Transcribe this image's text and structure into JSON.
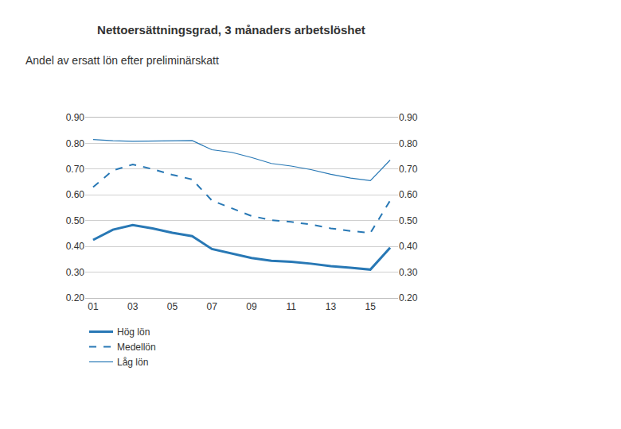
{
  "chart_data": {
    "type": "line",
    "title": "Nettoersättningsgrad, 3 månaders arbetslöshet",
    "subtitle": "Andel av ersatt lön efter preliminärskatt",
    "x": [
      2001,
      2002,
      2003,
      2004,
      2005,
      2006,
      2007,
      2008,
      2009,
      2010,
      2011,
      2012,
      2013,
      2014,
      2015,
      2016
    ],
    "xlim": [
      2000.6,
      2016.4
    ],
    "xticks": [
      {
        "value": 2001,
        "label": "01"
      },
      {
        "value": 2003,
        "label": "03"
      },
      {
        "value": 2005,
        "label": "05"
      },
      {
        "value": 2007,
        "label": "07"
      },
      {
        "value": 2009,
        "label": "09"
      },
      {
        "value": 2011,
        "label": "11"
      },
      {
        "value": 2013,
        "label": "13"
      },
      {
        "value": 2015,
        "label": "15"
      }
    ],
    "ylim": [
      0.2,
      0.9
    ],
    "yticks": [
      {
        "value": 0.2,
        "label": "0.20"
      },
      {
        "value": 0.3,
        "label": "0.30"
      },
      {
        "value": 0.4,
        "label": "0.40"
      },
      {
        "value": 0.5,
        "label": "0.50"
      },
      {
        "value": 0.6,
        "label": "0.60"
      },
      {
        "value": 0.7,
        "label": "0.70"
      },
      {
        "value": 0.8,
        "label": "0.80"
      },
      {
        "value": 0.9,
        "label": "0.90"
      }
    ],
    "y2lim": [
      0.2,
      0.9
    ],
    "y2ticks": [
      {
        "value": 0.2,
        "label": "0.20"
      },
      {
        "value": 0.3,
        "label": "0.30"
      },
      {
        "value": 0.4,
        "label": "0.40"
      },
      {
        "value": 0.5,
        "label": "0.50"
      },
      {
        "value": 0.6,
        "label": "0.60"
      },
      {
        "value": 0.7,
        "label": "0.70"
      },
      {
        "value": 0.8,
        "label": "0.80"
      },
      {
        "value": 0.9,
        "label": "0.90"
      }
    ],
    "grid": true,
    "legend": "bottom left",
    "series": [
      {
        "name": "Hög lön",
        "color": "#2878b5",
        "line_style": "solid",
        "values": [
          0.425,
          0.465,
          0.483,
          0.47,
          0.453,
          0.44,
          0.39,
          0.373,
          0.355,
          0.344,
          0.34,
          0.333,
          0.323,
          0.317,
          0.31,
          0.395
        ]
      },
      {
        "name": "Medellön",
        "color": "#2878b5",
        "line_style": "dash",
        "values": [
          0.63,
          0.695,
          0.718,
          0.7,
          0.678,
          0.66,
          0.578,
          0.548,
          0.518,
          0.502,
          0.495,
          0.485,
          0.47,
          0.46,
          0.452,
          0.578
        ]
      },
      {
        "name": "Låg lön",
        "color": "#2878b5",
        "line_style": "solid",
        "values": [
          0.815,
          0.81,
          0.808,
          0.809,
          0.81,
          0.811,
          0.775,
          0.765,
          0.745,
          0.722,
          0.712,
          0.698,
          0.68,
          0.665,
          0.655,
          0.735
        ]
      }
    ]
  }
}
